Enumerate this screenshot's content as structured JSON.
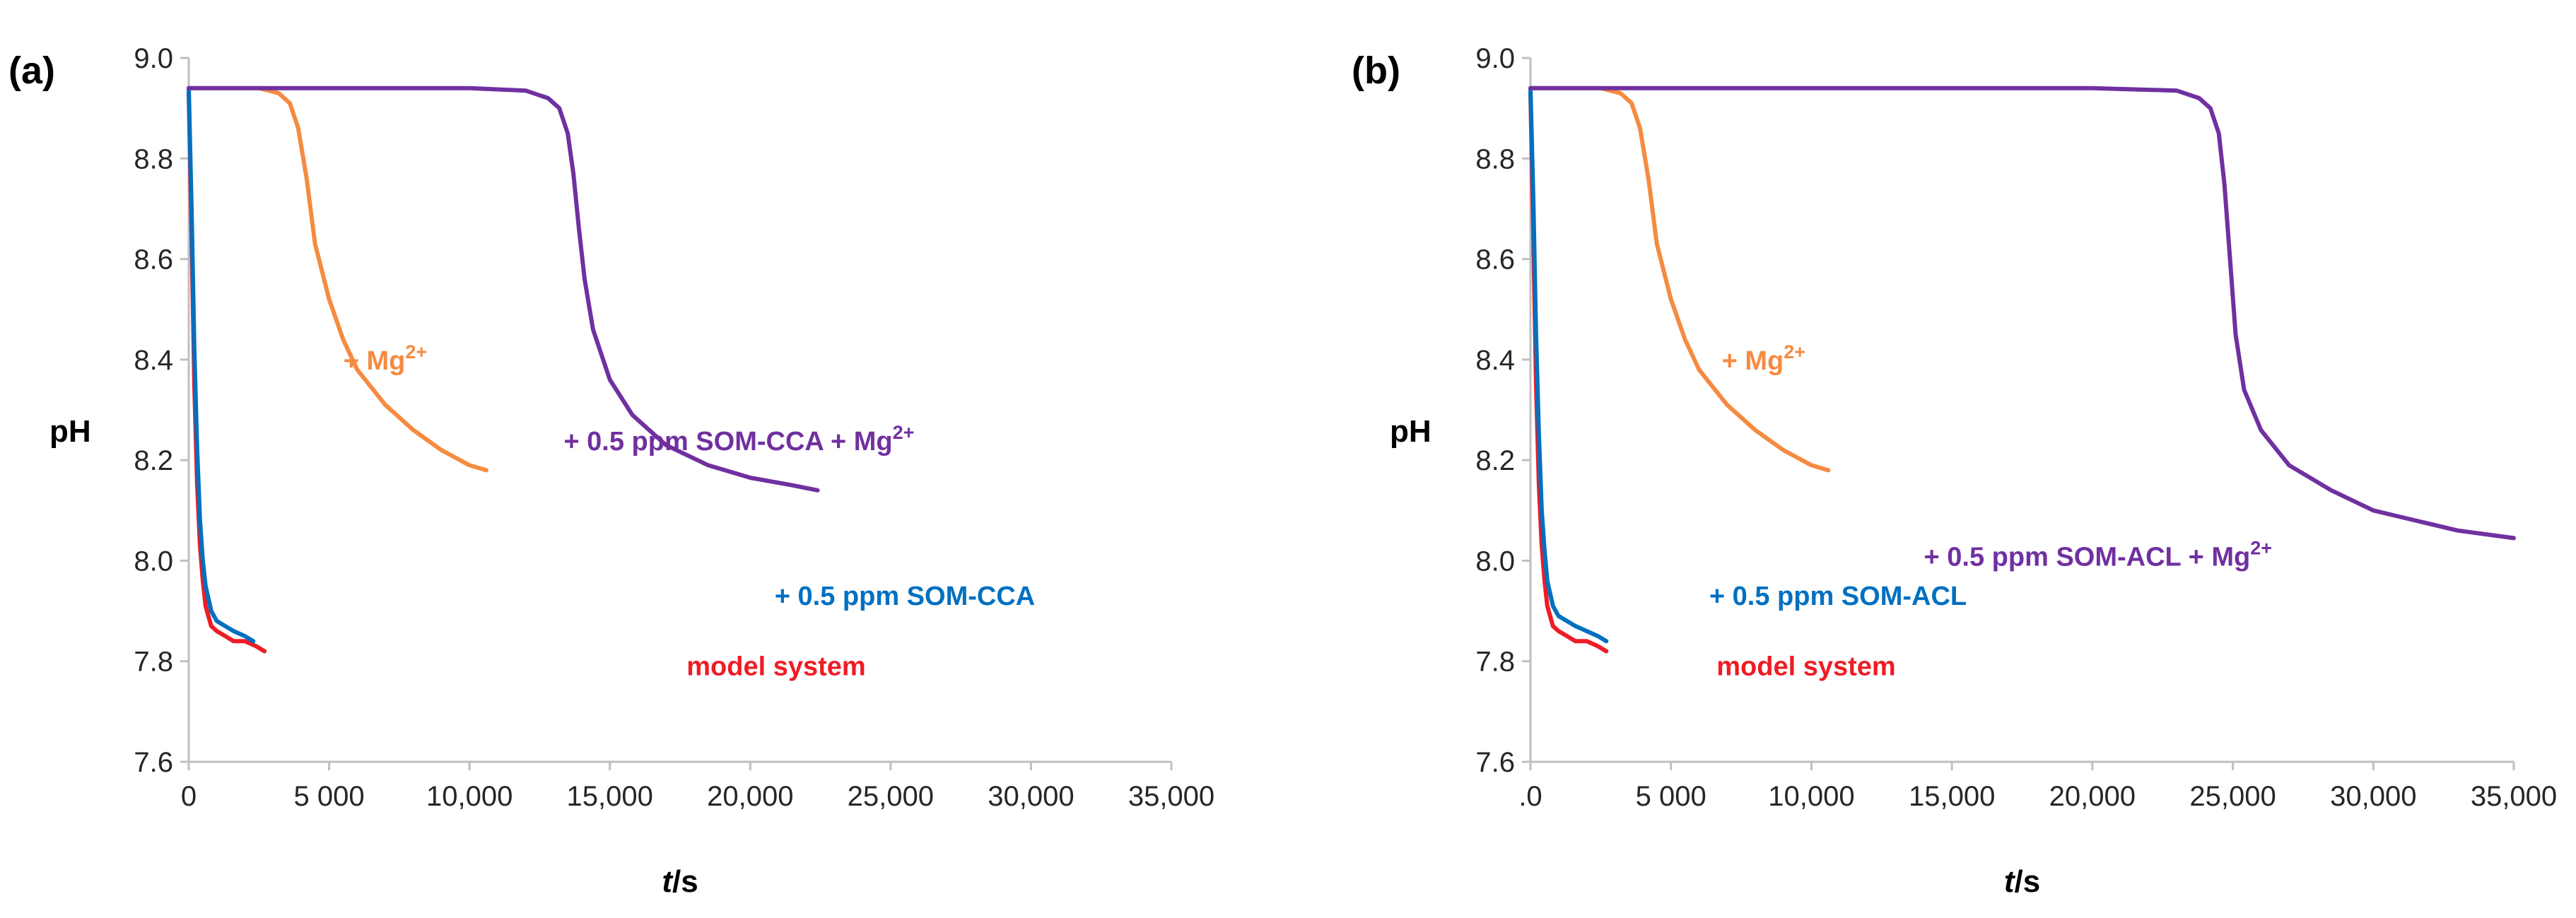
{
  "colors": {
    "model_system": "#ee1c25",
    "som": "#0070c0",
    "mg": "#f58b40",
    "som_mg": "#7030a0",
    "axis": "#bfbfbf"
  },
  "chart_data": [
    {
      "type": "line",
      "panel_label": "(a)",
      "xlabel_italic": "t",
      "xlabel_unit": "/s",
      "ylabel": "pH",
      "xlim": [
        0,
        35000
      ],
      "ylim": [
        7.6,
        9.0
      ],
      "x_ticks": [
        0,
        5000,
        10000,
        15000,
        20000,
        25000,
        30000,
        35000
      ],
      "x_tick_labels": [
        "0",
        "5 000",
        "10,000",
        "15,000",
        "20,000",
        "25,000",
        "30,000",
        "35,000"
      ],
      "y_ticks": [
        7.6,
        7.8,
        8.0,
        8.2,
        8.4,
        8.6,
        8.8,
        9.0
      ],
      "y_tick_labels": [
        "7.6",
        "7.8",
        "8.0",
        "8.2",
        "8.4",
        "8.6",
        "8.8",
        "9.0"
      ],
      "series": [
        {
          "name": "model system",
          "label_text": "model system",
          "label_sup": "",
          "color_key": "model_system",
          "x": [
            0,
            100,
            200,
            300,
            400,
            500,
            600,
            800,
            1000,
            1300,
            1600,
            2000,
            2400,
            2700
          ],
          "y": [
            8.93,
            8.65,
            8.35,
            8.15,
            8.03,
            7.96,
            7.91,
            7.87,
            7.86,
            7.85,
            7.84,
            7.84,
            7.83,
            7.82
          ]
        },
        {
          "name": "+ 0.5 ppm SOM-CCA",
          "label_text": "+ 0.5 ppm SOM-CCA",
          "label_sup": "",
          "color_key": "som",
          "x": [
            0,
            100,
            200,
            300,
            400,
            500,
            600,
            800,
            1000,
            1300,
            1600,
            2000,
            2300
          ],
          "y": [
            8.94,
            8.7,
            8.42,
            8.22,
            8.08,
            8.0,
            7.95,
            7.9,
            7.88,
            7.87,
            7.86,
            7.85,
            7.84
          ]
        },
        {
          "name": "+ Mg2+",
          "label_text": "+ Mg",
          "label_sup": "2+",
          "color_key": "mg",
          "x": [
            0,
            1500,
            2500,
            3200,
            3600,
            3900,
            4200,
            4500,
            5000,
            5500,
            6000,
            7000,
            8000,
            9000,
            10000,
            10600
          ],
          "y": [
            8.94,
            8.94,
            8.94,
            8.93,
            8.91,
            8.86,
            8.76,
            8.63,
            8.52,
            8.44,
            8.38,
            8.31,
            8.26,
            8.22,
            8.19,
            8.18
          ],
          "label_at": [
            7000,
            8.38
          ]
        },
        {
          "name": "+ 0.5 ppm SOM-CCA + Mg2+",
          "label_text": "+ 0.5 ppm SOM-CCA + Mg",
          "label_sup": "2+",
          "color_key": "som_mg",
          "x": [
            0,
            6000,
            10000,
            12000,
            12800,
            13200,
            13500,
            13700,
            13900,
            14100,
            14400,
            15000,
            15800,
            17000,
            18500,
            20000,
            21500,
            22400
          ],
          "y": [
            8.94,
            8.94,
            8.94,
            8.935,
            8.92,
            8.9,
            8.85,
            8.77,
            8.66,
            8.56,
            8.46,
            8.36,
            8.29,
            8.23,
            8.19,
            8.165,
            8.15,
            8.14
          ],
          "label_at": [
            19600,
            8.22
          ]
        }
      ]
    },
    {
      "type": "line",
      "panel_label": "(b)",
      "xlabel_italic": "t",
      "xlabel_unit": "/s",
      "ylabel": "pH",
      "xlim": [
        0,
        35000
      ],
      "ylim": [
        7.6,
        9.0
      ],
      "x_ticks": [
        0,
        5000,
        10000,
        15000,
        20000,
        25000,
        30000,
        35000
      ],
      "x_tick_labels": [
        ".0",
        "5 000",
        "10,000",
        "15,000",
        "20,000",
        "25,000",
        "30,000",
        "35,000"
      ],
      "y_ticks": [
        7.6,
        7.8,
        8.0,
        8.2,
        8.4,
        8.6,
        8.8,
        9.0
      ],
      "y_tick_labels": [
        "7.6",
        "7.8",
        "8.0",
        "8.2",
        "8.4",
        "8.6",
        "8.8",
        "9.0"
      ],
      "series": [
        {
          "name": "model system",
          "label_text": "model system",
          "label_sup": "",
          "color_key": "model_system",
          "x": [
            0,
            100,
            200,
            300,
            400,
            500,
            600,
            800,
            1000,
            1300,
            1600,
            2000,
            2400,
            2700
          ],
          "y": [
            8.93,
            8.65,
            8.35,
            8.15,
            8.03,
            7.96,
            7.91,
            7.87,
            7.86,
            7.85,
            7.84,
            7.84,
            7.83,
            7.82
          ]
        },
        {
          "name": "+ 0.5 ppm SOM-ACL",
          "label_text": "+ 0.5 ppm SOM-ACL",
          "label_sup": "",
          "color_key": "som",
          "x": [
            0,
            100,
            200,
            300,
            400,
            500,
            600,
            800,
            1000,
            1300,
            1600,
            2000,
            2400,
            2700
          ],
          "y": [
            8.94,
            8.72,
            8.45,
            8.25,
            8.1,
            8.02,
            7.96,
            7.91,
            7.89,
            7.88,
            7.87,
            7.86,
            7.85,
            7.84
          ]
        },
        {
          "name": "+ Mg2+",
          "label_text": "+ Mg",
          "label_sup": "2+",
          "color_key": "mg",
          "x": [
            0,
            1500,
            2500,
            3200,
            3600,
            3900,
            4200,
            4500,
            5000,
            5500,
            6000,
            7000,
            8000,
            9000,
            10000,
            10600
          ],
          "y": [
            8.94,
            8.94,
            8.94,
            8.93,
            8.91,
            8.86,
            8.76,
            8.63,
            8.52,
            8.44,
            8.38,
            8.31,
            8.26,
            8.22,
            8.19,
            8.18
          ],
          "label_at": [
            8300,
            8.38
          ]
        },
        {
          "name": "+ 0.5 ppm SOM-ACL + Mg2+",
          "label_text": "+ 0.5 ppm SOM-ACL + Mg",
          "label_sup": "2+",
          "color_key": "som_mg",
          "x": [
            0,
            10000,
            20000,
            23000,
            23800,
            24200,
            24500,
            24700,
            24900,
            25100,
            25400,
            26000,
            27000,
            28500,
            30000,
            31500,
            33000,
            35000
          ],
          "y": [
            8.94,
            8.94,
            8.94,
            8.935,
            8.92,
            8.9,
            8.85,
            8.75,
            8.6,
            8.45,
            8.34,
            8.26,
            8.19,
            8.14,
            8.1,
            8.08,
            8.06,
            8.045
          ],
          "label_at": [
            20200,
            7.99
          ]
        }
      ]
    }
  ]
}
